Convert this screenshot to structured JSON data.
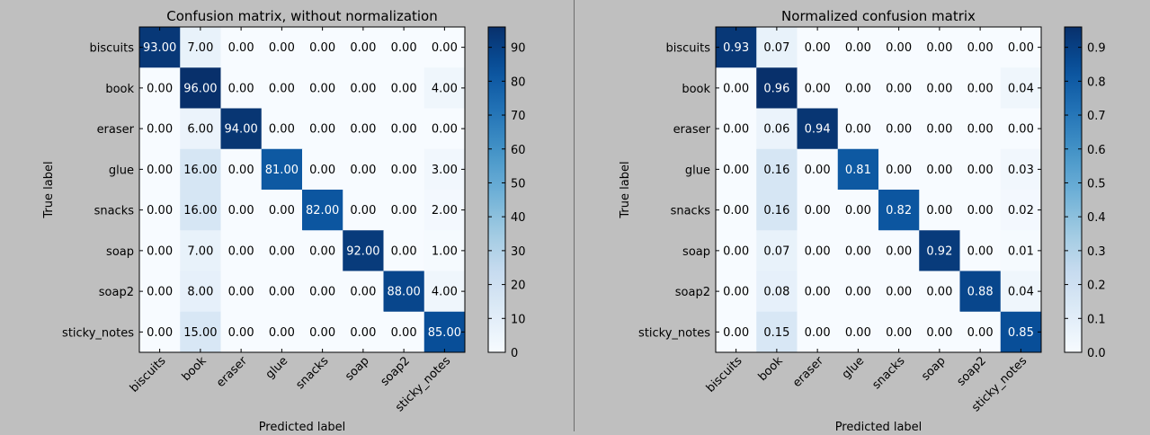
{
  "chart_data": [
    {
      "type": "heatmap",
      "title": "Confusion matrix, without normalization",
      "xlabel": "Predicted label",
      "ylabel": "True label",
      "x_categories": [
        "biscuits",
        "book",
        "eraser",
        "glue",
        "snacks",
        "soap",
        "soap2",
        "sticky_notes"
      ],
      "y_categories": [
        "biscuits",
        "book",
        "eraser",
        "glue",
        "snacks",
        "soap",
        "soap2",
        "sticky_notes"
      ],
      "matrix": [
        [
          93,
          7,
          0,
          0,
          0,
          0,
          0,
          0
        ],
        [
          0,
          96,
          0,
          0,
          0,
          0,
          0,
          4
        ],
        [
          0,
          6,
          94,
          0,
          0,
          0,
          0,
          0
        ],
        [
          0,
          16,
          0,
          81,
          0,
          0,
          0,
          3
        ],
        [
          0,
          16,
          0,
          0,
          82,
          0,
          0,
          2
        ],
        [
          0,
          7,
          0,
          0,
          0,
          92,
          0,
          1
        ],
        [
          0,
          8,
          0,
          0,
          0,
          0,
          88,
          4
        ],
        [
          0,
          15,
          0,
          0,
          0,
          0,
          0,
          85
        ]
      ],
      "value_format_decimals": 2,
      "colormap": "Blues",
      "colorbar": {
        "min": 0,
        "max": 96,
        "ticks": [
          0,
          10,
          20,
          30,
          40,
          50,
          60,
          70,
          80,
          90
        ]
      }
    },
    {
      "type": "heatmap",
      "title": "Normalized confusion matrix",
      "xlabel": "Predicted label",
      "ylabel": "True label",
      "x_categories": [
        "biscuits",
        "book",
        "eraser",
        "glue",
        "snacks",
        "soap",
        "soap2",
        "sticky_notes"
      ],
      "y_categories": [
        "biscuits",
        "book",
        "eraser",
        "glue",
        "snacks",
        "soap",
        "soap2",
        "sticky_notes"
      ],
      "matrix": [
        [
          0.93,
          0.07,
          0,
          0,
          0,
          0,
          0,
          0
        ],
        [
          0,
          0.96,
          0,
          0,
          0,
          0,
          0,
          0.04
        ],
        [
          0,
          0.06,
          0.94,
          0,
          0,
          0,
          0,
          0
        ],
        [
          0,
          0.16,
          0,
          0.81,
          0,
          0,
          0,
          0.03
        ],
        [
          0,
          0.16,
          0,
          0,
          0.82,
          0,
          0,
          0.02
        ],
        [
          0,
          0.07,
          0,
          0,
          0,
          0.92,
          0,
          0.01
        ],
        [
          0,
          0.08,
          0,
          0,
          0,
          0,
          0.88,
          0.04
        ],
        [
          0,
          0.15,
          0,
          0,
          0,
          0,
          0,
          0.85
        ]
      ],
      "value_format_decimals": 2,
      "colormap": "Blues",
      "colorbar": {
        "min": 0,
        "max": 0.96,
        "ticks": [
          0.0,
          0.1,
          0.2,
          0.3,
          0.4,
          0.5,
          0.6,
          0.7,
          0.8,
          0.9
        ],
        "tick_decimals": 1
      }
    }
  ]
}
